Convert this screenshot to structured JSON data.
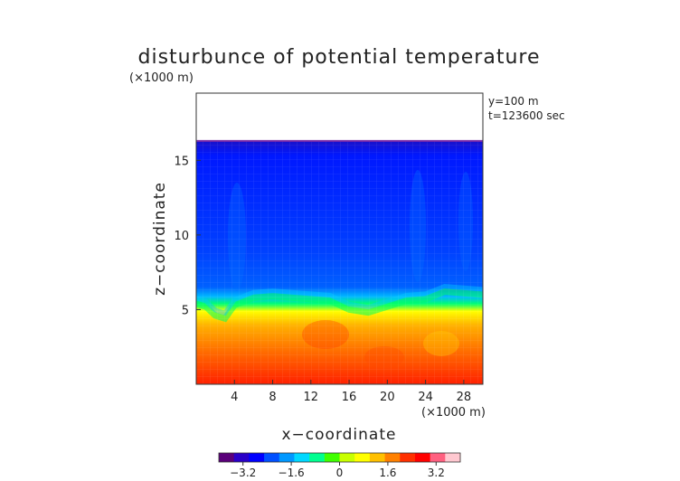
{
  "chart_data": {
    "type": "heatmap",
    "title": "disturbunce of potential temperature",
    "y_unit_note": "(×1000 m)",
    "x_unit_note": "(×1000 m)",
    "xlabel": "x−coordinate",
    "ylabel": "z−coordinate",
    "annotations": [
      "y=100 m",
      "t=123600 sec"
    ],
    "x_ticks": [
      "4",
      "8",
      "12",
      "16",
      "20",
      "24",
      "28"
    ],
    "y_ticks": [
      "5",
      "10",
      "15"
    ],
    "xlim": [
      0,
      30
    ],
    "ylim": [
      0,
      19.5
    ],
    "field_top_z": 16.3,
    "mixed_layer_top": [
      [
        0,
        5.4
      ],
      [
        1,
        5.2
      ],
      [
        2,
        4.6
      ],
      [
        3,
        4.4
      ],
      [
        4,
        5.3
      ],
      [
        6,
        5.8
      ],
      [
        8,
        5.9
      ],
      [
        10,
        5.8
      ],
      [
        12,
        5.7
      ],
      [
        14,
        5.6
      ],
      [
        16,
        5.0
      ],
      [
        18,
        4.8
      ],
      [
        20,
        5.2
      ],
      [
        22,
        5.6
      ],
      [
        24,
        5.7
      ],
      [
        26,
        6.2
      ],
      [
        28,
        6.1
      ],
      [
        30,
        6.0
      ]
    ],
    "colorbar": {
      "ticks": [
        "−3.2",
        "−1.6",
        "0",
        "1.6",
        "3.2"
      ],
      "range": [
        -4.0,
        4.0
      ],
      "colors": [
        "#5a007a",
        "#2a00c8",
        "#0000ff",
        "#0050ff",
        "#0098ff",
        "#00d8ff",
        "#00ff90",
        "#40ff00",
        "#c8ff00",
        "#ffff00",
        "#ffc000",
        "#ff8000",
        "#ff3000",
        "#ff0000",
        "#ff6080",
        "#ffc8d0"
      ]
    }
  }
}
